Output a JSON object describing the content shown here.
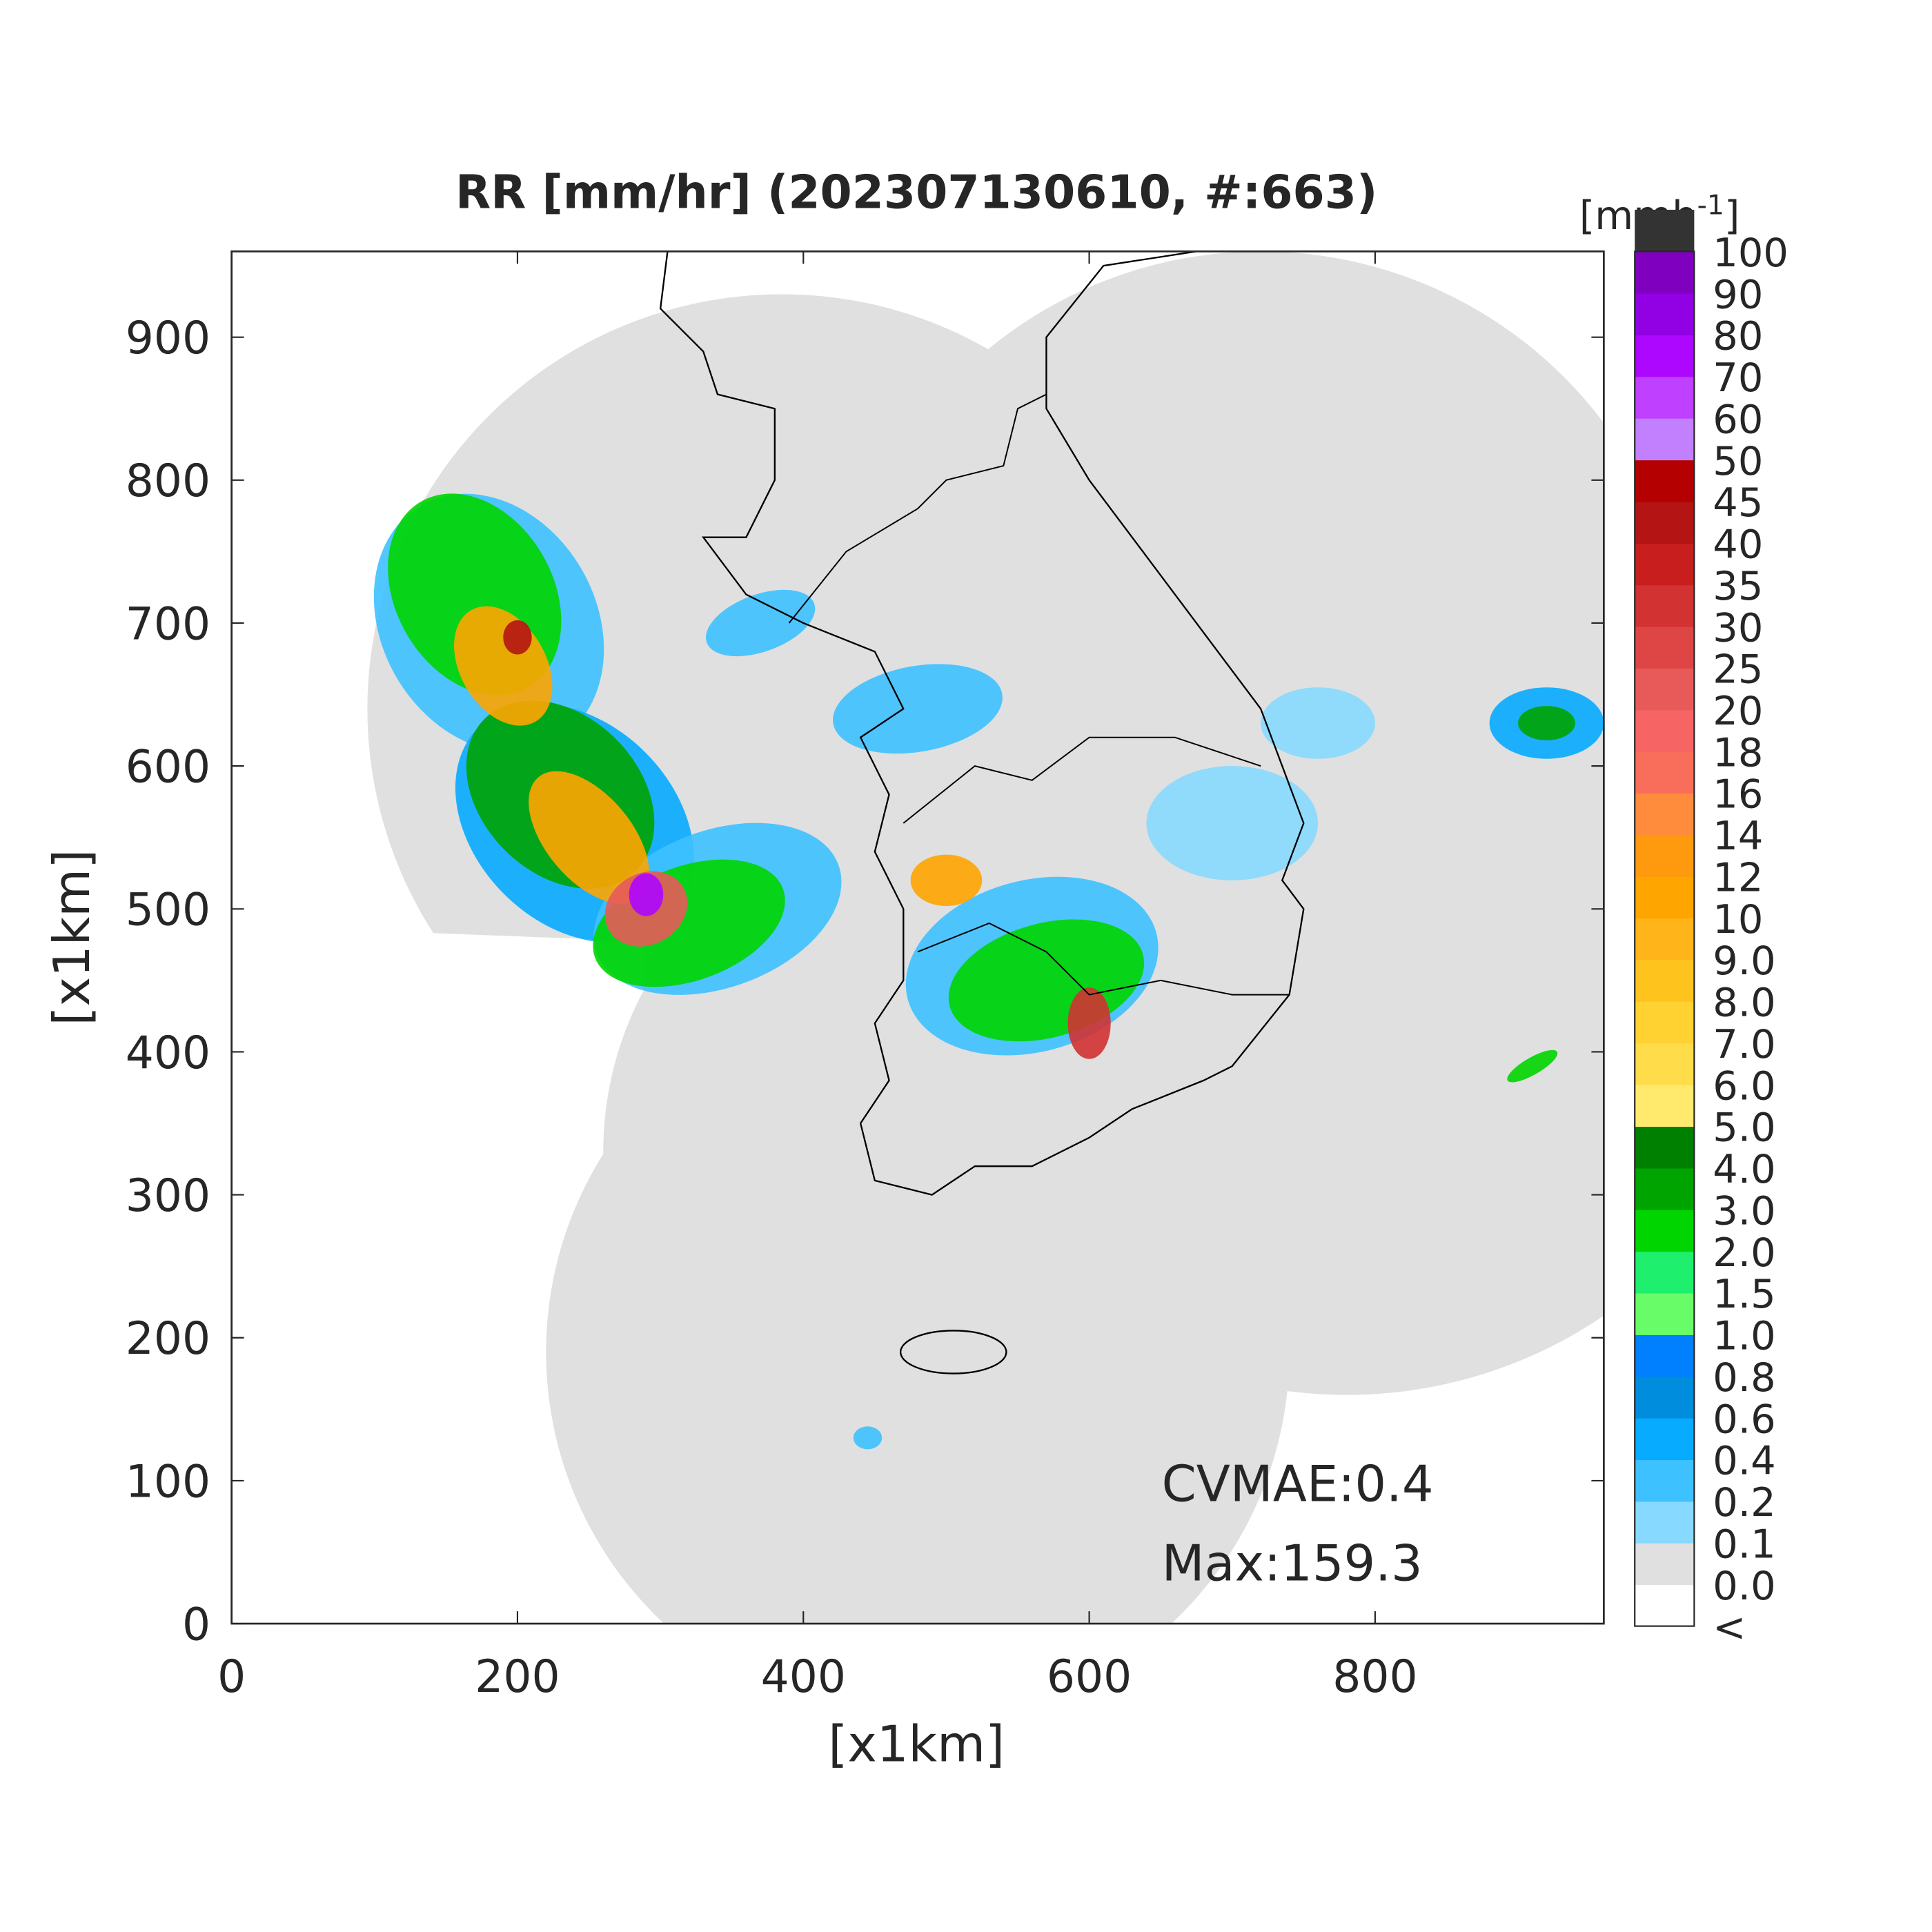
{
  "title": "RR [mm/hr] (202307130610, #:663)",
  "axes": {
    "xlabel": "[x1km]",
    "ylabel": "[x1km]",
    "xlim": [
      0,
      960
    ],
    "ylim": [
      0,
      960
    ],
    "xticks": [
      0,
      200,
      400,
      600,
      800
    ],
    "yticks": [
      0,
      100,
      200,
      300,
      400,
      500,
      600,
      700,
      800,
      900
    ]
  },
  "colorbar": {
    "unit_parts": [
      "[mmh",
      "-1",
      "]"
    ],
    "labels": [
      "<",
      "0.0",
      "0.1",
      "0.2",
      "0.4",
      "0.6",
      "0.8",
      "1.0",
      "1.5",
      "2.0",
      "3.0",
      "4.0",
      "5.0",
      "6.0",
      "7.0",
      "8.0",
      "9.0",
      "10",
      "12",
      "14",
      "16",
      "18",
      "20",
      "25",
      "30",
      "35",
      "40",
      "45",
      "50",
      "60",
      "70",
      "80",
      "90",
      "100"
    ],
    "colors": [
      "#ffffff",
      "#e0e0e0",
      "#87d9ff",
      "#3ec1ff",
      "#07abff",
      "#008dde",
      "#007fff",
      "#69fc69",
      "#1ef06e",
      "#00d500",
      "#00a400",
      "#008000",
      "#ffea6e",
      "#ffdc4a",
      "#ffd232",
      "#ffc31e",
      "#ffb41a",
      "#ffa500",
      "#ff9a0f",
      "#ff8c3c",
      "#f86e5a",
      "#f66464",
      "#e85a5a",
      "#de4646",
      "#d23232",
      "#c81e1e",
      "#b41414",
      "#b40000",
      "#c280ff",
      "#c040ff",
      "#ad07ff",
      "#9200e4",
      "#7f00bf",
      "#333333"
    ]
  },
  "annotations": [
    "CVMAE:0.4",
    "Max:159.3"
  ]
}
